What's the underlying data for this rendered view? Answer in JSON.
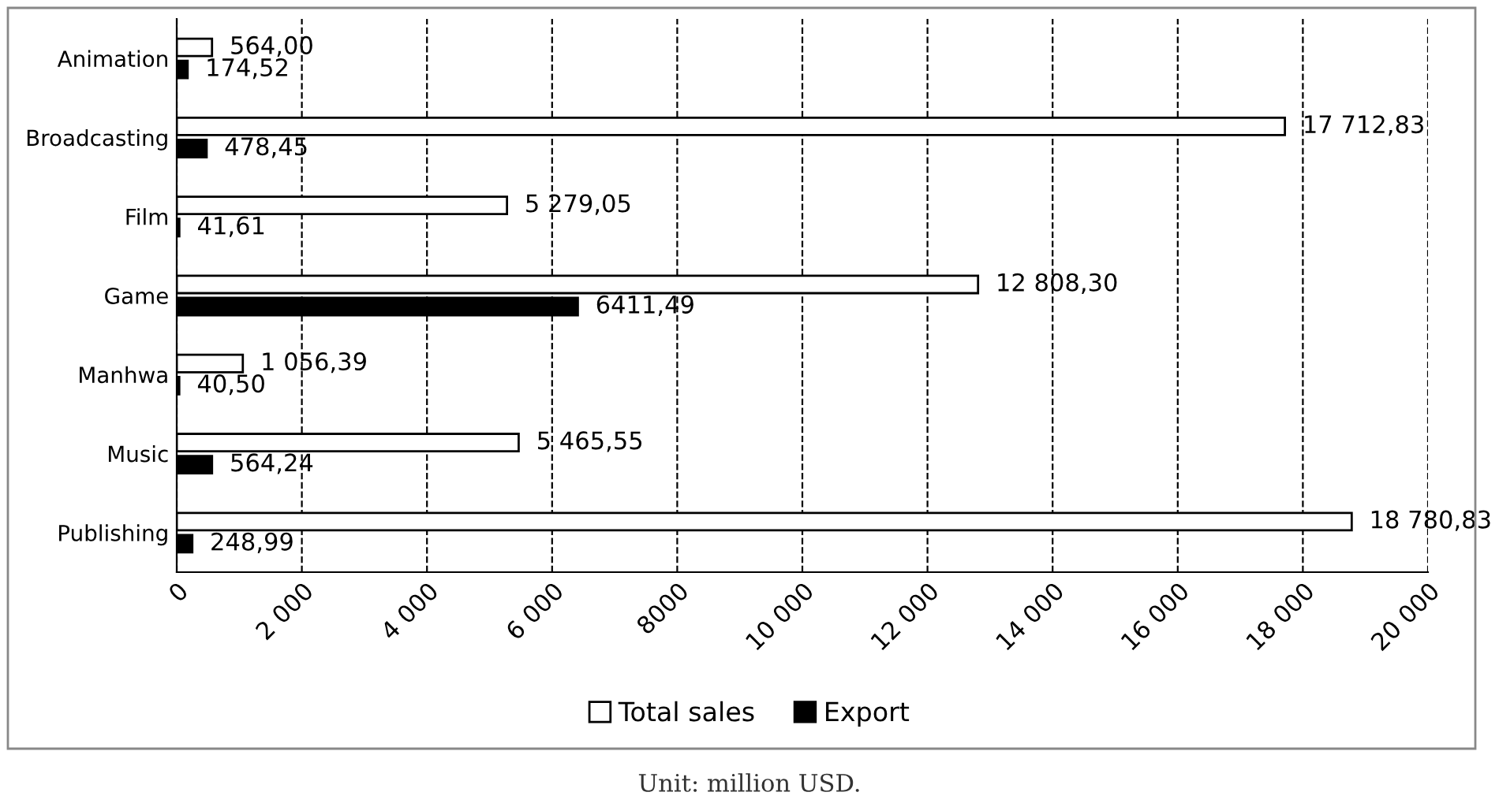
{
  "chart_data": {
    "type": "bar",
    "orientation": "horizontal",
    "categories": [
      "Animation",
      "Broadcasting",
      "Film",
      "Game",
      "Manhwa",
      "Music",
      "Publishing"
    ],
    "series": [
      {
        "name": "Total sales",
        "color": "#ffffff",
        "values": [
          564.0,
          17712.83,
          5279.05,
          12808.3,
          1056.39,
          5465.55,
          18780.83
        ],
        "value_labels": [
          "564,00",
          "17 712,83",
          "5 279,05",
          "12 808,30",
          "1 056,39",
          "5 465,55",
          "18 780,83"
        ]
      },
      {
        "name": "Export",
        "color": "#000000",
        "values": [
          174.52,
          478.45,
          41.61,
          6411.49,
          40.5,
          564.24,
          248.99
        ],
        "value_labels": [
          "174,52",
          "478,45",
          "41,61",
          "6411,49",
          "40,50",
          "564,24",
          "248,99"
        ]
      }
    ],
    "xlim": [
      0,
      20000
    ],
    "xticks": [
      0,
      {
        "value": 2000,
        "label": "2 000"
      },
      {
        "value": 4000,
        "label": "4 000"
      },
      {
        "value": 6000,
        "label": "6 000"
      },
      8000,
      {
        "value": 10000,
        "label": "10 000"
      },
      {
        "value": 12000,
        "label": "12 000"
      },
      {
        "value": 14000,
        "label": "14 000"
      },
      {
        "value": 16000,
        "label": "16 000"
      },
      {
        "value": 18000,
        "label": "18 000"
      },
      {
        "value": 20000,
        "label": "20 000"
      }
    ],
    "grid": "x",
    "line_style": "dashed",
    "legend": "bottom",
    "annotations": [
      "Unit: million USD."
    ]
  }
}
